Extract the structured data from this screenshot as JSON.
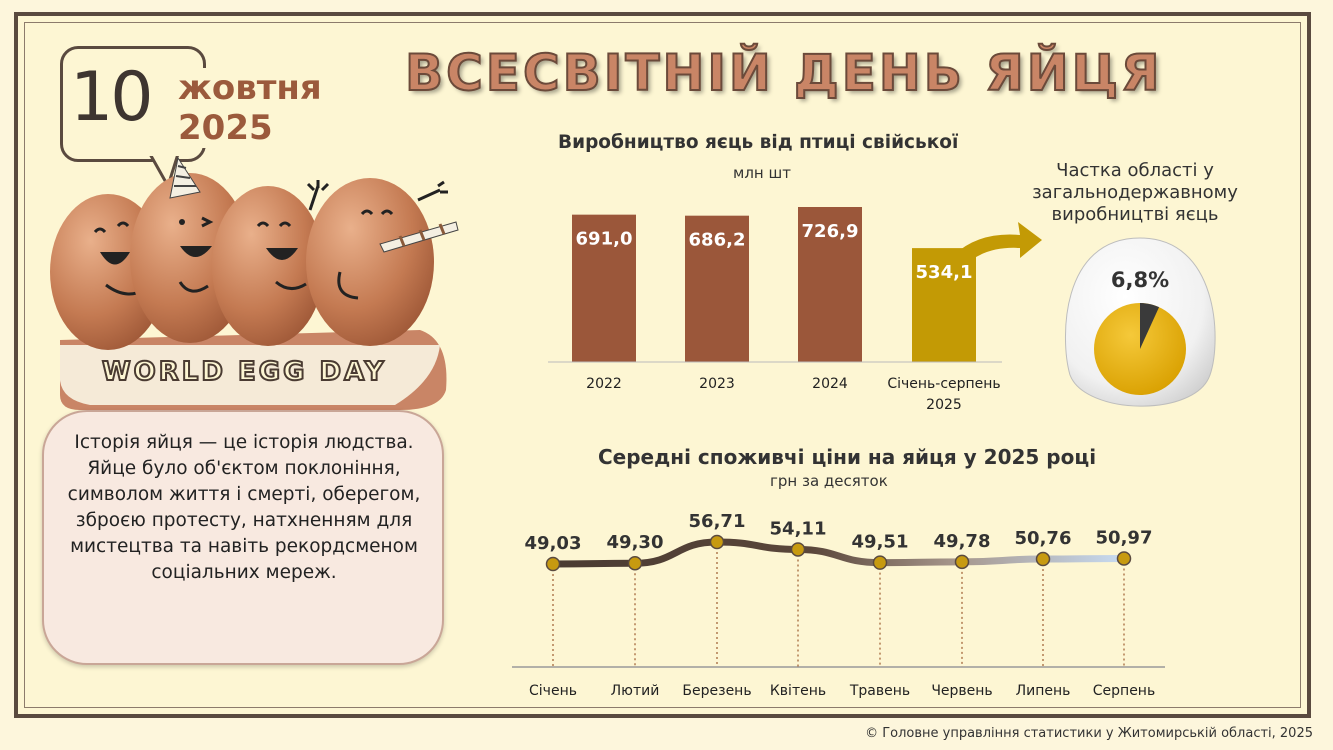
{
  "header": {
    "title": "ВСЕСВІТНІЙ ДЕНЬ ЯЙЦЯ",
    "date_day": "10",
    "date_month": "жовтня",
    "date_year": "2025",
    "event_label": "WORLD EGG DAY"
  },
  "story": {
    "text": "Історія яйця — це історія людства. Яйце було об'єктом поклоніння, символом життя і смерті, оберегом, зброєю протесту, натхненням для мистецтва та навіть рекордсменом соціальних мереж."
  },
  "share": {
    "label": "Частка області у загальнодержавному виробництві яєць",
    "value": "6,8%",
    "fraction": 0.068
  },
  "footer": {
    "text": "© Головне управління статистики у Житомирській області, 2025"
  },
  "colors": {
    "bar": "#9b573a",
    "bar_highlight": "#c39a05",
    "line_dark": "#4a3b32",
    "line_light": "#c7dbf2",
    "marker": "#c79a10"
  },
  "chart_data": [
    {
      "type": "bar",
      "title": "Виробництво яєць від птиці свійської",
      "subtitle": "млн шт",
      "categories": [
        "2022",
        "2023",
        "2024",
        "Січень-серпень 2025"
      ],
      "values": [
        691.0,
        686.2,
        726.9,
        534.1
      ],
      "labels": [
        "691,0",
        "686,2",
        "726,9",
        "534,1"
      ],
      "highlight_index": 3
    },
    {
      "type": "line",
      "title": "Середні споживчі ціни на яйця у 2025 році",
      "subtitle": "грн за десяток",
      "categories": [
        "Січень",
        "Лютий",
        "Березень",
        "Квітень",
        "Травень",
        "Червень",
        "Липень",
        "Серпень"
      ],
      "values": [
        49.03,
        49.3,
        56.71,
        54.11,
        49.51,
        49.78,
        50.76,
        50.97
      ],
      "labels": [
        "49,03",
        "49,30",
        "56,71",
        "54,11",
        "49,51",
        "49,78",
        "50,76",
        "50,97"
      ]
    }
  ]
}
